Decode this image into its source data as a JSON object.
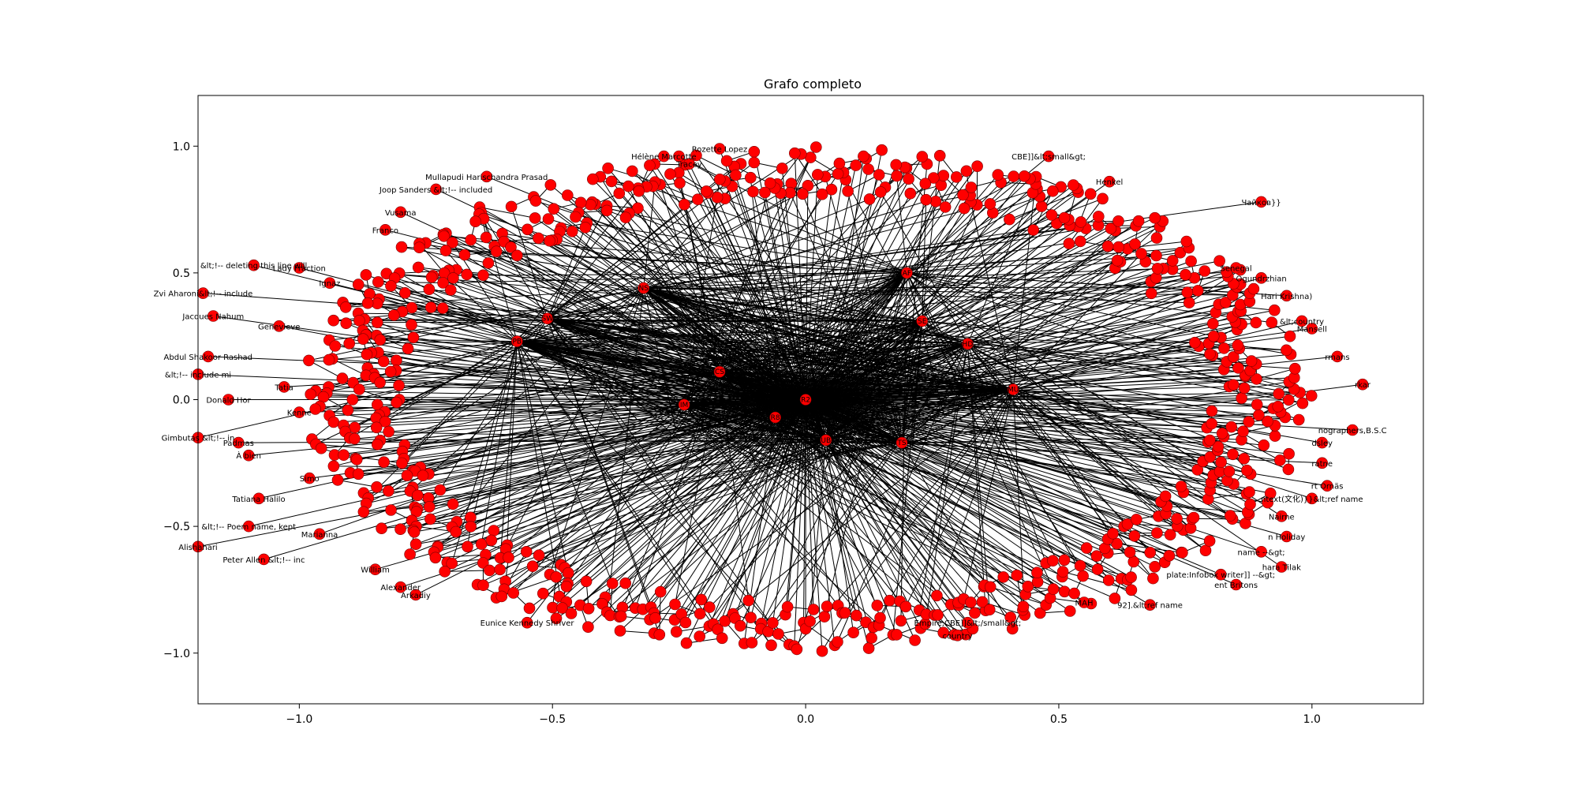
{
  "chart_data": {
    "type": "network_graph",
    "title": "Grafo completo",
    "xlabel": "",
    "ylabel": "",
    "xlim": [
      -1.2,
      1.22
    ],
    "ylim": [
      -1.2,
      1.2
    ],
    "x_ticks": [
      -1.0,
      -0.5,
      0.0,
      0.5,
      1.0
    ],
    "x_tick_labels": [
      "−1.0",
      "−0.5",
      "0.0",
      "0.5",
      "1.0"
    ],
    "y_ticks": [
      1.0,
      0.5,
      0.0,
      -0.5,
      -1.0
    ],
    "y_tick_labels": [
      "1.0",
      "0.5",
      "0.0",
      "−0.5",
      "−1.0"
    ],
    "grid": false,
    "node_color": "#ff0000",
    "edge_color": "#000000",
    "hub_nodes": [
      {
        "x": 0.0,
        "y": 0.0,
        "label": "R2"
      },
      {
        "x": -0.17,
        "y": 0.11,
        "label": "CS"
      },
      {
        "x": -0.24,
        "y": -0.02,
        "label": "IM"
      },
      {
        "x": -0.06,
        "y": -0.07,
        "label": "R8"
      },
      {
        "x": 0.04,
        "y": -0.16,
        "label": "UB"
      },
      {
        "x": 0.19,
        "y": -0.17,
        "label": "TS"
      },
      {
        "x": 0.41,
        "y": 0.04,
        "label": "MU"
      },
      {
        "x": 0.32,
        "y": 0.22,
        "label": "HD"
      },
      {
        "x": 0.23,
        "y": 0.31,
        "label": "SE"
      },
      {
        "x": 0.2,
        "y": 0.5,
        "label": "AF"
      },
      {
        "x": -0.32,
        "y": 0.44,
        "label": "NS"
      },
      {
        "x": -0.51,
        "y": 0.32,
        "label": "SW"
      },
      {
        "x": -0.57,
        "y": 0.23,
        "label": "PB"
      }
    ],
    "labeled_nodes": [
      {
        "x": -0.17,
        "y": 0.99,
        "label": "Rozette Lopez"
      },
      {
        "x": -0.63,
        "y": 0.88,
        "label": "Mullapudi Harischandra Prasad"
      },
      {
        "x": -0.23,
        "y": 0.93,
        "label": "Tracey"
      },
      {
        "x": -0.28,
        "y": 0.96,
        "label": "Hélène Marcotte"
      },
      {
        "x": 0.48,
        "y": 0.96,
        "label": "CBE]]&lt;small&gt;"
      },
      {
        "x": 0.6,
        "y": 0.86,
        "label": "Henkel"
      },
      {
        "x": 0.9,
        "y": 0.78,
        "label": "Чайков}}"
      },
      {
        "x": -0.73,
        "y": 0.83,
        "label": "Joop Sanders &lt;!-- included"
      },
      {
        "x": -0.8,
        "y": 0.74,
        "label": "Vusama"
      },
      {
        "x": -0.83,
        "y": 0.67,
        "label": "Franco"
      },
      {
        "x": -1.09,
        "y": 0.53,
        "label": "&lt;!-- deleting this line will"
      },
      {
        "x": -1.0,
        "y": 0.52,
        "label": "Lady Fraction"
      },
      {
        "x": -0.94,
        "y": 0.46,
        "label": "Ignaz"
      },
      {
        "x": -1.19,
        "y": 0.42,
        "label": "Zvi Aharoni&lt;!-- include"
      },
      {
        "x": -1.17,
        "y": 0.33,
        "label": "Jacques Nahum"
      },
      {
        "x": -1.04,
        "y": 0.29,
        "label": "Genevieve"
      },
      {
        "x": -1.18,
        "y": 0.17,
        "label": "Abdul Shakoor Rashad"
      },
      {
        "x": -1.2,
        "y": 0.1,
        "label": "&lt;!-- include mi"
      },
      {
        "x": -1.03,
        "y": 0.05,
        "label": "Tatia"
      },
      {
        "x": -1.14,
        "y": 0.0,
        "label": "Donald Hor"
      },
      {
        "x": -1.0,
        "y": -0.05,
        "label": "Kenne"
      },
      {
        "x": -1.2,
        "y": -0.15,
        "label": "Gimbutas &lt;!-- in"
      },
      {
        "x": -1.12,
        "y": -0.17,
        "label": "Padmas"
      },
      {
        "x": -1.1,
        "y": -0.22,
        "label": "À bien"
      },
      {
        "x": -0.98,
        "y": -0.31,
        "label": "Simo"
      },
      {
        "x": -1.08,
        "y": -0.39,
        "label": "Tatiana Halilo"
      },
      {
        "x": -1.1,
        "y": -0.5,
        "label": "&lt;!-- Poem name, kept"
      },
      {
        "x": -0.96,
        "y": -0.53,
        "label": "Marianna"
      },
      {
        "x": -1.2,
        "y": -0.58,
        "label": "Alishahari"
      },
      {
        "x": -1.07,
        "y": -0.63,
        "label": "Peter Allen &lt;!-- inc"
      },
      {
        "x": -0.85,
        "y": -0.67,
        "label": "William"
      },
      {
        "x": -0.8,
        "y": -0.74,
        "label": "Alexander"
      },
      {
        "x": -0.77,
        "y": -0.77,
        "label": "Arkadiy"
      },
      {
        "x": -0.55,
        "y": -0.88,
        "label": "Eunice Kennedy Shriver"
      },
      {
        "x": 0.85,
        "y": 0.52,
        "label": "Senegal"
      },
      {
        "x": 0.9,
        "y": 0.48,
        "label": "Ogundrzhian"
      },
      {
        "x": 0.95,
        "y": 0.41,
        "label": "Hari Krishna)"
      },
      {
        "x": 0.98,
        "y": 0.31,
        "label": "&lt;country"
      },
      {
        "x": 1.0,
        "y": 0.28,
        "label": "Mansell"
      },
      {
        "x": 1.05,
        "y": 0.17,
        "label": "rmans"
      },
      {
        "x": 1.1,
        "y": 0.06,
        "label": "rkar"
      },
      {
        "x": 1.08,
        "y": -0.12,
        "label": "nographers,B.S.C"
      },
      {
        "x": 1.02,
        "y": -0.17,
        "label": "dsley"
      },
      {
        "x": 1.02,
        "y": -0.25,
        "label": "ratne"
      },
      {
        "x": 1.03,
        "y": -0.34,
        "label": "rt Ornäs"
      },
      {
        "x": 1.0,
        "y": -0.39,
        "label": "ntext(文化)}}&lt;ref name"
      },
      {
        "x": 0.94,
        "y": -0.46,
        "label": "Nairne"
      },
      {
        "x": 0.95,
        "y": -0.54,
        "label": "n Holiday"
      },
      {
        "x": 0.9,
        "y": -0.6,
        "label": "name --&gt;"
      },
      {
        "x": 0.94,
        "y": -0.66,
        "label": "hara Tilak"
      },
      {
        "x": 0.82,
        "y": -0.69,
        "label": "plate:Infobox writer]] --&gt;"
      },
      {
        "x": 0.85,
        "y": -0.73,
        "label": "ent Britons"
      },
      {
        "x": 0.55,
        "y": -0.8,
        "label": "MAH"
      },
      {
        "x": 0.68,
        "y": -0.81,
        "label": "92].&lt;ref name"
      },
      {
        "x": 0.32,
        "y": -0.88,
        "label": "Empire,CBE]]&lt;/small&gt;"
      },
      {
        "x": 0.3,
        "y": -0.93,
        "label": "country"
      }
    ]
  }
}
